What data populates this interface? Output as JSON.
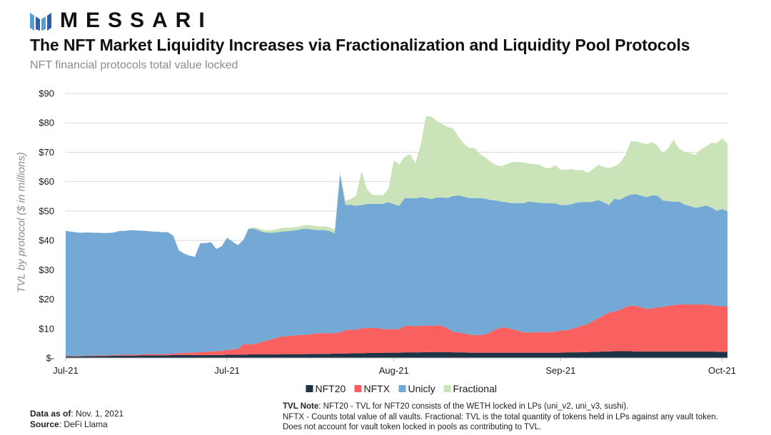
{
  "brand": {
    "name": "MESSARI"
  },
  "header": {
    "title": "The NFT Market Liquidity Increases via Fractionalization and Liquidity Pool Protocols",
    "subtitle": "NFT financial protocols total value locked"
  },
  "footer": {
    "data_as_of_label": "Data as of",
    "data_as_of_value": ": Nov. 1, 2021",
    "source_label": "Source",
    "source_value": ": DeFi Llama",
    "note_label": "TVL Note",
    "note_line1": ": NFT20 - TVL for NFT20 consists of the WETH locked in LPs (uni_v2, uni_v3, sushi).",
    "note_line2": "NFTX - Counts total value of all vaults. Fractional: TVL is the total quantity of tokens held in LPs against any vault token.",
    "note_line3": "Does not account for vault token locked in pools as contributing to TVL."
  },
  "colors": {
    "NFT20": "#1f3347",
    "NFTX": "#f96160",
    "Unicly": "#73a9d4",
    "Fractional": "#cbe3b9",
    "grid": "#d9d9d9",
    "brand_blue": "#5a9bd5"
  },
  "chart_data": {
    "type": "area",
    "stacked": true,
    "ylabel": "TVL by protocol ($ in millions)",
    "ylim": [
      0,
      90
    ],
    "yticks": [
      "$-",
      "$10",
      "$20",
      "$30",
      "$40",
      "$50",
      "$60",
      "$70",
      "$80",
      "$90"
    ],
    "xticks": [
      {
        "index": 0,
        "label": "Jul-21"
      },
      {
        "index": 30,
        "label": "Jul-21"
      },
      {
        "index": 61,
        "label": "Aug-21"
      },
      {
        "index": 92,
        "label": "Sep-21"
      },
      {
        "index": 122,
        "label": "Oct-21"
      }
    ],
    "grid": true,
    "legend": "bottom",
    "series": [
      {
        "name": "NFT20",
        "values": [
          0.5,
          0.5,
          0.5,
          0.6,
          0.6,
          0.6,
          0.7,
          0.7,
          0.7,
          0.8,
          0.8,
          0.8,
          0.8,
          0.8,
          0.9,
          0.9,
          0.9,
          0.9,
          0.9,
          0.9,
          1,
          1,
          1,
          1,
          1,
          1,
          1,
          1,
          1,
          1,
          1.1,
          1.1,
          1.1,
          1.1,
          1.2,
          1.2,
          1.2,
          1.2,
          1.2,
          1.2,
          1.3,
          1.3,
          1.3,
          1.3,
          1.3,
          1.3,
          1.4,
          1.4,
          1.4,
          1.4,
          1.5,
          1.5,
          1.5,
          1.6,
          1.6,
          1.6,
          1.7,
          1.7,
          1.7,
          1.8,
          1.8,
          1.8,
          1.8,
          1.9,
          1.9,
          1.9,
          1.9,
          2,
          2,
          2,
          2,
          2,
          1.9,
          1.9,
          1.9,
          1.8,
          1.8,
          1.8,
          1.8,
          1.8,
          1.8,
          1.8,
          1.8,
          1.8,
          1.8,
          1.8,
          1.8,
          1.8,
          1.8,
          1.8,
          1.8,
          1.8,
          1.8,
          1.9,
          1.9,
          1.9,
          2,
          2,
          2.1,
          2.1,
          2.2,
          2.2,
          2.3,
          2.3,
          2.3,
          2.3,
          2.2,
          2.2,
          2.2,
          2.2,
          2.2,
          2.2,
          2.2,
          2.2,
          2.2,
          2.2,
          2.2,
          2.2,
          2.2,
          2.2,
          2.2,
          2.1,
          2.1,
          2.1
        ]
      },
      {
        "name": "NFTX",
        "values": [
          0.1,
          0.1,
          0.1,
          0.1,
          0.1,
          0.2,
          0.2,
          0.2,
          0.2,
          0.2,
          0.3,
          0.3,
          0.3,
          0.3,
          0.3,
          0.4,
          0.4,
          0.4,
          0.4,
          0.4,
          0.5,
          0.6,
          0.7,
          0.8,
          0.9,
          1,
          1.1,
          1.2,
          1.3,
          1.4,
          1.6,
          1.8,
          2,
          3.5,
          3.5,
          3.5,
          4,
          4.5,
          5,
          5.5,
          6,
          6,
          6.3,
          6.5,
          6.5,
          6.6,
          6.8,
          7,
          7,
          7,
          7,
          7.2,
          8,
          8,
          8,
          8.5,
          8.5,
          8.5,
          8.5,
          8,
          8,
          8,
          8,
          9,
          9,
          9,
          9,
          9,
          9,
          9,
          9,
          8,
          7,
          6.8,
          6.5,
          6.2,
          6,
          6,
          6.2,
          7,
          8,
          8.5,
          8.5,
          8,
          7.5,
          7,
          6.8,
          7,
          7,
          7,
          7,
          7.2,
          7.5,
          7.5,
          8,
          8.5,
          9,
          9.5,
          10.5,
          11.5,
          12.3,
          13.3,
          13.5,
          14,
          15,
          15.5,
          15.5,
          15,
          14.5,
          14.7,
          15,
          15.2,
          15.5,
          15.8,
          16,
          16,
          16,
          16,
          16,
          16,
          15.8,
          15.6,
          15.5,
          15.5,
          15.5
        ]
      },
      {
        "name": "Unicly",
        "values": [
          42.6,
          42.4,
          42.1,
          41.9,
          42,
          41.8,
          41.7,
          41.6,
          41.6,
          41.7,
          42.1,
          42.1,
          42.4,
          42.3,
          42.1,
          41.9,
          41.7,
          41.7,
          41.5,
          41.5,
          40.1,
          35.1,
          33.8,
          33,
          32.5,
          37,
          37,
          37.2,
          34.8,
          35.6,
          38.2,
          36.7,
          35.3,
          35.5,
          39.3,
          39.3,
          38.1,
          37,
          36.4,
          36,
          35.7,
          35.8,
          35.7,
          35.7,
          36.1,
          36,
          35.5,
          35.1,
          35.1,
          34.8,
          33.9,
          53.8,
          42.5,
          42.5,
          42.2,
          41.9,
          42.2,
          42.3,
          42.2,
          42.7,
          43.2,
          42.5,
          42,
          43.5,
          43.5,
          43.4,
          43.8,
          43.4,
          43.1,
          43.6,
          43.6,
          44.5,
          46.2,
          46.6,
          46.5,
          46.4,
          46.6,
          46.6,
          46.2,
          44.9,
          43.8,
          42.9,
          42.7,
          42.8,
          43.4,
          43.8,
          44.6,
          44.2,
          44,
          43.9,
          43.8,
          43.6,
          42.7,
          42.6,
          42.4,
          42.5,
          42,
          41.5,
          40.6,
          40.1,
          38.5,
          36.6,
          38.4,
          37.5,
          37.6,
          37.8,
          38,
          38,
          38,
          38.5,
          38,
          36.2,
          35.7,
          35.2,
          35,
          34,
          33.5,
          32.9,
          33.2,
          33.7,
          33.2,
          32.4,
          33.1,
          32.4,
          31.8
        ]
      },
      {
        "name": "Fractional",
        "values": [
          0,
          0,
          0,
          0,
          0,
          0,
          0,
          0,
          0,
          0,
          0,
          0,
          0,
          0,
          0,
          0,
          0,
          0,
          0,
          0,
          0,
          0,
          0,
          0,
          0,
          0,
          0,
          0,
          0,
          0,
          0,
          0,
          0,
          0,
          0,
          0.5,
          0.7,
          0.8,
          0.8,
          1,
          1.2,
          1.2,
          1.1,
          1.1,
          1.1,
          1.3,
          1.3,
          1.3,
          1.3,
          1.3,
          1.3,
          1,
          1.5,
          2,
          3.5,
          11.5,
          5,
          3,
          3,
          3,
          4.5,
          15,
          14,
          14,
          15,
          12,
          18,
          28,
          28,
          26,
          25,
          24,
          23,
          20,
          18,
          17,
          17,
          15,
          14,
          13,
          12,
          12,
          13,
          14,
          14,
          14,
          13,
          13,
          13,
          12,
          12,
          13,
          12,
          12,
          12,
          11,
          11,
          10,
          11,
          12,
          12,
          12.5,
          11,
          12.5,
          14,
          18,
          18,
          18,
          18,
          18,
          17,
          16,
          18,
          21,
          18,
          18,
          18,
          18,
          19.5,
          20,
          22,
          23,
          24,
          23,
          23,
          25.5
        ]
      }
    ]
  }
}
